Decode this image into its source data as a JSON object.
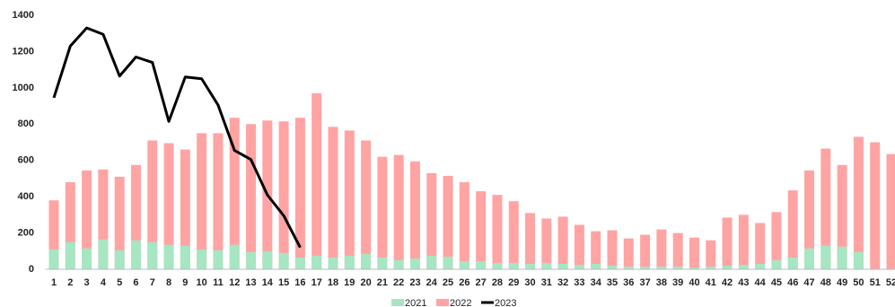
{
  "chart_data": {
    "type": "bar",
    "categories": [
      "1",
      "2",
      "3",
      "4",
      "5",
      "6",
      "7",
      "8",
      "9",
      "10",
      "11",
      "12",
      "13",
      "14",
      "15",
      "16",
      "17",
      "18",
      "19",
      "20",
      "21",
      "22",
      "23",
      "24",
      "25",
      "26",
      "27",
      "28",
      "29",
      "30",
      "31",
      "32",
      "33",
      "34",
      "35",
      "36",
      "37",
      "38",
      "39",
      "40",
      "41",
      "42",
      "43",
      "44",
      "45",
      "46",
      "47",
      "48",
      "49",
      "50",
      "51",
      "52"
    ],
    "series": [
      {
        "name": "2021",
        "color": "#a6e6c2",
        "type": "bar",
        "values": [
          110,
          150,
          115,
          165,
          105,
          160,
          150,
          135,
          130,
          110,
          105,
          135,
          95,
          100,
          90,
          65,
          75,
          65,
          75,
          85,
          65,
          50,
          60,
          75,
          70,
          45,
          45,
          35,
          35,
          30,
          35,
          30,
          25,
          30,
          20,
          15,
          15,
          15,
          15,
          10,
          15,
          20,
          25,
          30,
          50,
          65,
          115,
          130,
          125,
          95,
          null,
          null
        ]
      },
      {
        "name": "2022",
        "color": "#ffa3a3",
        "type": "bar",
        "values": [
          380,
          480,
          545,
          550,
          510,
          575,
          710,
          695,
          660,
          750,
          750,
          835,
          800,
          820,
          815,
          835,
          970,
          785,
          765,
          710,
          620,
          630,
          595,
          530,
          515,
          480,
          430,
          410,
          375,
          310,
          280,
          290,
          245,
          210,
          215,
          170,
          190,
          220,
          200,
          175,
          160,
          285,
          300,
          255,
          315,
          435,
          545,
          665,
          575,
          730,
          700,
          635
        ]
      },
      {
        "name": "2023",
        "color": "#000000",
        "type": "line",
        "values": [
          945,
          1230,
          1330,
          1295,
          1065,
          1170,
          1140,
          815,
          1060,
          1050,
          905,
          655,
          605,
          410,
          295,
          120,
          null,
          null,
          null,
          null,
          null,
          null,
          null,
          null,
          null,
          null,
          null,
          null,
          null,
          null,
          null,
          null,
          null,
          null,
          null,
          null,
          null,
          null,
          null,
          null,
          null,
          null,
          null,
          null,
          null,
          null,
          null,
          null,
          null,
          null,
          null,
          null
        ]
      }
    ],
    "ylim": [
      0,
      1400
    ],
    "yticks": [
      0,
      200,
      400,
      600,
      800,
      1000,
      1200,
      1400
    ],
    "grid": false
  }
}
